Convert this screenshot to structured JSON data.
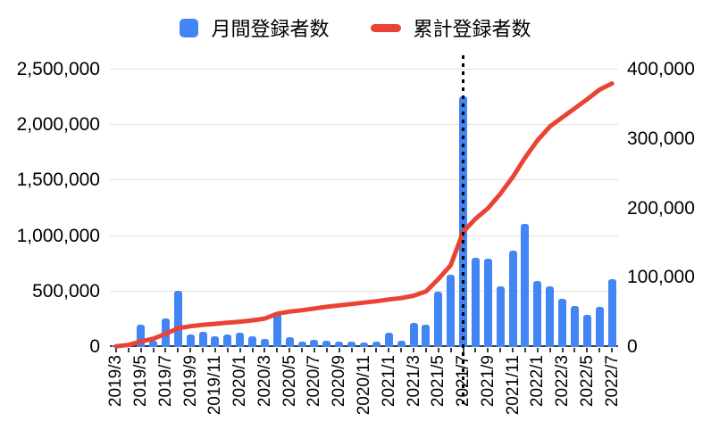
{
  "legend": [
    {
      "label": "月間登録者数",
      "type": "bar",
      "color": "#4285f4"
    },
    {
      "label": "累計登録者数",
      "type": "line",
      "color": "#ea4335"
    }
  ],
  "colors": {
    "bar_blue": "#4285f4",
    "line_red": "#ea4335",
    "gridline": "#e2e2e2",
    "axis": "#3c3c3c",
    "annotation_line": "#000000"
  },
  "chart_data": {
    "type": "bar",
    "subtype": "combo-bar-line-dual-axis",
    "title": "",
    "grid": true,
    "legend_position": "top",
    "categories": [
      "2019/3",
      "2019/4",
      "2019/5",
      "2019/6",
      "2019/7",
      "2019/8",
      "2019/9",
      "2019/10",
      "2019/11",
      "2019/12",
      "2020/1",
      "2020/2",
      "2020/3",
      "2020/4",
      "2020/5",
      "2020/6",
      "2020/7",
      "2020/8",
      "2020/9",
      "2020/10",
      "2020/11",
      "2020/12",
      "2021/1",
      "2021/2",
      "2021/3",
      "2021/4",
      "2021/5",
      "2021/6",
      "2021/7",
      "2021/8",
      "2021/9",
      "2021/10",
      "2021/11",
      "2021/12",
      "2022/1",
      "2022/2",
      "2022/3",
      "2022/4",
      "2022/5",
      "2022/6",
      "2022/7"
    ],
    "x_tick_labels": [
      "2019/3",
      "2019/5",
      "2019/7",
      "2019/9",
      "2019/11",
      "2020/1",
      "2020/3",
      "2020/5",
      "2020/7",
      "2020/9",
      "2020/11",
      "2021/1",
      "2021/3",
      "2021/5",
      "2021/7",
      "2021/9",
      "2021/11",
      "2022/1",
      "2022/3",
      "2022/5",
      "2022/7"
    ],
    "series": [
      {
        "name": "月間登録者数",
        "type": "bar",
        "axis": "left",
        "color": "#4285f4",
        "values": [
          15000,
          5000,
          205000,
          60000,
          260000,
          505000,
          110000,
          135000,
          95000,
          110000,
          125000,
          95000,
          70000,
          300000,
          90000,
          45000,
          65000,
          60000,
          50000,
          50000,
          40000,
          45000,
          125000,
          60000,
          220000,
          200000,
          500000,
          655000,
          2260000,
          800000,
          795000,
          550000,
          870000,
          1110000,
          595000,
          545000,
          435000,
          370000,
          290000,
          360000,
          610000
        ]
      },
      {
        "name": "累計登録者数",
        "type": "line",
        "axis": "right",
        "color": "#ea4335",
        "values": [
          1000,
          3000,
          8000,
          12000,
          19000,
          27000,
          30000,
          32000,
          33500,
          35000,
          36500,
          38500,
          41000,
          48000,
          51000,
          53000,
          55500,
          58000,
          60000,
          62000,
          64000,
          66000,
          68500,
          70500,
          74000,
          80000,
          98000,
          118000,
          166000,
          185000,
          200000,
          221000,
          245000,
          273000,
          298000,
          318000,
          331000,
          344000,
          357000,
          371000,
          380000
        ]
      }
    ],
    "left_axis": {
      "min": 0,
      "max": 2500000,
      "step": 500000,
      "tick_values": [
        0,
        500000,
        1000000,
        1500000,
        2000000,
        2500000
      ],
      "tick_labels": [
        "0",
        "500,000",
        "1,000,000",
        "1,500,000",
        "2,000,000",
        "2,500,000"
      ]
    },
    "right_axis": {
      "min": 0,
      "max": 400000,
      "step": 100000,
      "tick_values": [
        0,
        100000,
        200000,
        300000,
        400000
      ],
      "tick_labels": [
        "0",
        "100,000",
        "200,000",
        "300,000",
        "400,000"
      ]
    },
    "annotation": {
      "type": "vertical-dotted-line",
      "at": "2021/7",
      "color": "#000000"
    }
  }
}
